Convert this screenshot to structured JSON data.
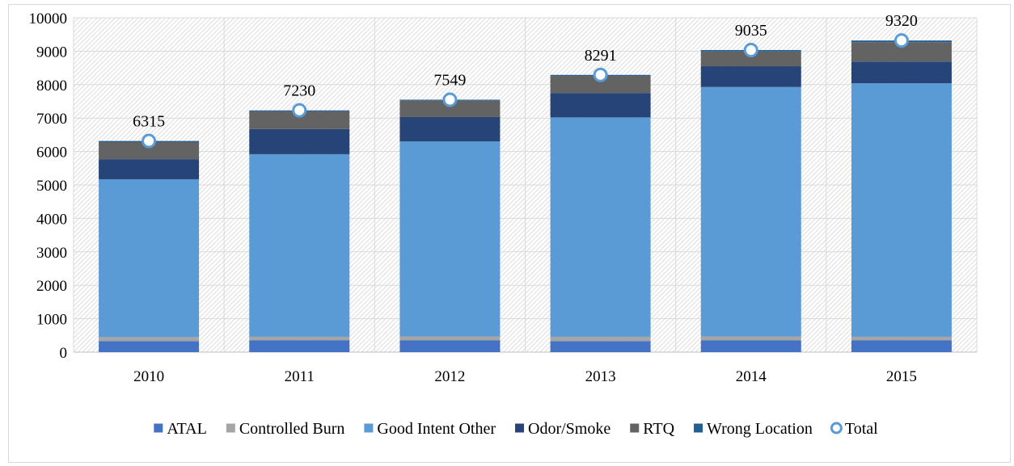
{
  "chart_data": {
    "type": "bar",
    "stacked": true,
    "categories": [
      "2010",
      "2011",
      "2012",
      "2013",
      "2014",
      "2015"
    ],
    "series": [
      {
        "name": "ATAL",
        "color": "#4472c4",
        "values": [
          330,
          350,
          350,
          330,
          350,
          350
        ]
      },
      {
        "name": "Controlled Burn",
        "color": "#a5a5a5",
        "values": [
          120,
          110,
          120,
          130,
          120,
          110
        ]
      },
      {
        "name": "Good Intent Other",
        "color": "#5b9bd5",
        "values": [
          4720,
          5460,
          5830,
          6560,
          7460,
          7580
        ]
      },
      {
        "name": "Odor/Smoke",
        "color": "#264478",
        "values": [
          600,
          750,
          730,
          730,
          620,
          650
        ]
      },
      {
        "name": "RTQ",
        "color": "#636363",
        "values": [
          510,
          530,
          490,
          510,
          440,
          580
        ]
      },
      {
        "name": "Wrong Location",
        "color": "#255e91",
        "values": [
          35,
          30,
          29,
          31,
          45,
          50
        ]
      }
    ],
    "total": {
      "name": "Total",
      "values": [
        6315,
        7230,
        7549,
        8291,
        9035,
        9320
      ]
    },
    "ylim": [
      0,
      10000
    ],
    "yticks": [
      "0",
      "1000",
      "2000",
      "3000",
      "4000",
      "5000",
      "6000",
      "7000",
      "8000",
      "9000",
      "10000"
    ],
    "grid": true,
    "legend_position": "bottom",
    "title": "",
    "xlabel": "",
    "ylabel": ""
  }
}
